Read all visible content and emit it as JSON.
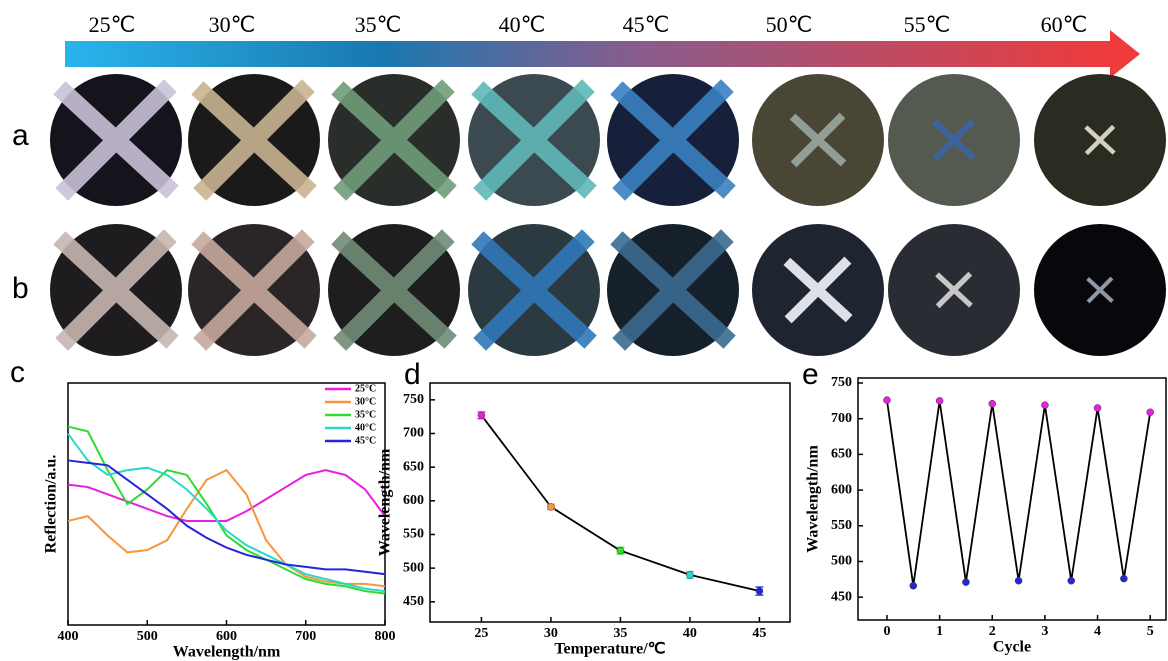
{
  "temperatures": [
    "25℃",
    "30℃",
    "35℃",
    "40℃",
    "45℃",
    "50℃",
    "55℃",
    "60℃"
  ],
  "row_labels": [
    "a",
    "b"
  ],
  "chart_data": [
    {
      "type": "line",
      "panel": "c",
      "xlabel": "Wavelength/nm",
      "ylabel": "Reflection/a.u.",
      "x": [
        400,
        425,
        450,
        475,
        500,
        525,
        550,
        575,
        600,
        625,
        650,
        675,
        700,
        725,
        750,
        775,
        800
      ],
      "xlim": [
        400,
        800
      ],
      "xticks": [
        400,
        500,
        600,
        700,
        800
      ],
      "ylim": [
        0,
        100
      ],
      "series": [
        {
          "name": "25°C",
          "color": "#e81ee0",
          "values": [
            58,
            57,
            54,
            51,
            48,
            45,
            43,
            43,
            43,
            47,
            52,
            57,
            62,
            64,
            62,
            56,
            45
          ]
        },
        {
          "name": "30°C",
          "color": "#f7963c",
          "values": [
            43,
            45,
            37,
            30,
            31,
            35,
            48,
            60,
            64,
            54,
            35,
            25,
            20,
            18,
            17,
            17,
            16
          ]
        },
        {
          "name": "35°C",
          "color": "#2fdc2f",
          "values": [
            82,
            80,
            64,
            50,
            56,
            64,
            62,
            50,
            37,
            31,
            27,
            23,
            19,
            17,
            16,
            14,
            13
          ]
        },
        {
          "name": "40°C",
          "color": "#28d8c8",
          "values": [
            79,
            68,
            62,
            64,
            65,
            62,
            56,
            48,
            39,
            33,
            29,
            25,
            21,
            19,
            17,
            15,
            14
          ]
        },
        {
          "name": "45°C",
          "color": "#2626d8",
          "values": [
            68,
            67,
            66,
            60,
            54,
            48,
            41,
            36,
            32,
            29,
            27,
            25,
            24,
            23,
            23,
            22,
            21
          ]
        }
      ]
    },
    {
      "type": "errorline",
      "panel": "d",
      "xlabel": "Temperature/℃",
      "ylabel": "Wavelength/nm",
      "x": [
        25,
        30,
        35,
        40,
        45
      ],
      "values": [
        727,
        591,
        526,
        490,
        466
      ],
      "errors": [
        5,
        4,
        5,
        5,
        6
      ],
      "point_colors": [
        "#e81ee0",
        "#f7963c",
        "#2fdc2f",
        "#28d8c8",
        "#2626d8"
      ],
      "line_color": "#000000",
      "xlim": [
        21.3,
        47.2
      ],
      "xticks": [
        25,
        30,
        35,
        40,
        45
      ],
      "ylim": [
        420,
        775
      ],
      "yticks": [
        450,
        500,
        550,
        600,
        650,
        700,
        750
      ]
    },
    {
      "type": "errorline",
      "panel": "e",
      "xlabel": "Cycle",
      "ylabel": "Wavelength/nm",
      "x": [
        0,
        0.5,
        1,
        1.5,
        2,
        2.5,
        3,
        3.5,
        4,
        4.5,
        5
      ],
      "values": [
        726,
        466,
        725,
        471,
        721,
        473,
        719,
        473,
        715,
        476,
        709
      ],
      "point_colors": [
        "#e81ee0",
        "#2626d8",
        "#e81ee0",
        "#2626d8",
        "#e81ee0",
        "#2626d8",
        "#e81ee0",
        "#2626d8",
        "#e81ee0",
        "#2626d8",
        "#e81ee0"
      ],
      "line_color": "#000000",
      "xlim": [
        -0.55,
        5.3
      ],
      "xticks": [
        0,
        1,
        2,
        3,
        4,
        5
      ],
      "ylim": [
        418,
        757
      ],
      "yticks": [
        450,
        500,
        550,
        600,
        650,
        700,
        750
      ]
    }
  ]
}
